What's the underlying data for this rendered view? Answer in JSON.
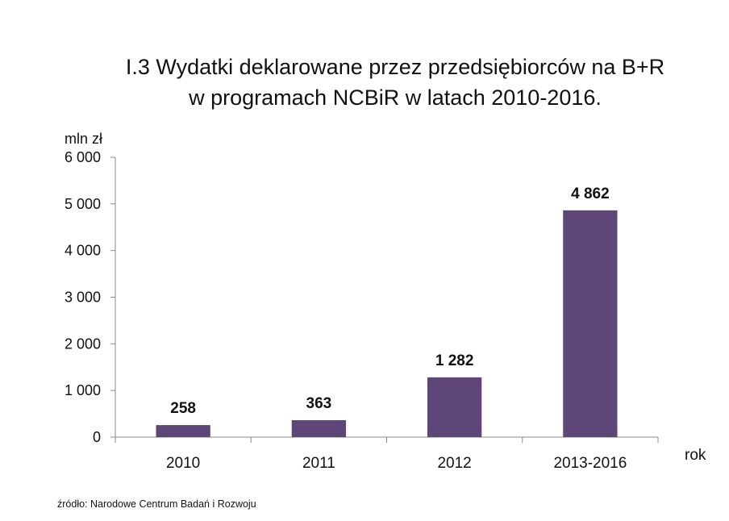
{
  "chart_data": {
    "type": "bar",
    "title_lines": [
      "I.3 Wydatki deklarowane przez przedsiębiorców na B+R",
      "w programach NCBiR w latach 2010-2016."
    ],
    "ylabel": "mln zł",
    "xlabel": "rok",
    "categories": [
      "2010",
      "2011",
      "2012",
      "2013-2016"
    ],
    "values": [
      258,
      363,
      1282,
      4862
    ],
    "value_labels": [
      "258",
      "363",
      "1 282",
      "4 862"
    ],
    "ylim": [
      0,
      6000
    ],
    "yticks": [
      0,
      1000,
      2000,
      3000,
      4000,
      5000,
      6000
    ],
    "ytick_labels": [
      "0",
      "1 000",
      "2 000",
      "3 000",
      "4 000",
      "5 000",
      "6 000"
    ],
    "bar_color": "#5e4778",
    "grid": false,
    "legend": "none"
  },
  "source": "źródło: Narodowe Centrum Badań i Rozwoju"
}
